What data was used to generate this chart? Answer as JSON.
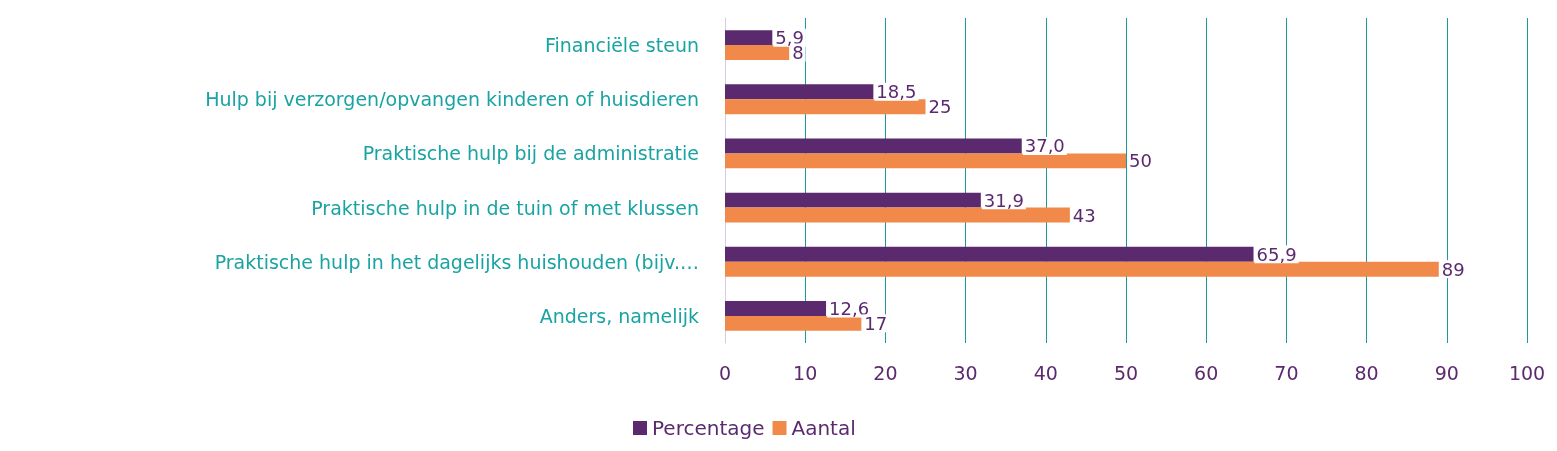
{
  "chart_data": {
    "type": "bar",
    "orientation": "horizontal",
    "categories": [
      "Financiële steun",
      "Hulp bij verzorgen/opvangen kinderen of huisdieren",
      "Praktische hulp bij de administratie",
      "Praktische hulp in de tuin of met klussen",
      "Praktische hulp in het dagelijks huishouden (bijv.…",
      "Anders, namelijk"
    ],
    "series": [
      {
        "name": "Percentage",
        "color": "#5b2a6e",
        "values": [
          5.9,
          18.5,
          37.0,
          31.9,
          65.9,
          12.6
        ],
        "value_labels": [
          "5,9",
          "18,5",
          "37,0",
          "31,9",
          "65,9",
          "12,6"
        ]
      },
      {
        "name": "Aantal",
        "color": "#f0894a",
        "values": [
          8,
          25,
          50,
          43,
          89,
          17
        ],
        "value_labels": [
          "8",
          "25",
          "50",
          "43",
          "89",
          "17"
        ]
      }
    ],
    "xlim": [
      0,
      100
    ],
    "xticks": [
      0,
      10,
      20,
      30,
      40,
      50,
      60,
      70,
      80,
      90,
      100
    ],
    "grid": "x",
    "legend": "bottom"
  }
}
